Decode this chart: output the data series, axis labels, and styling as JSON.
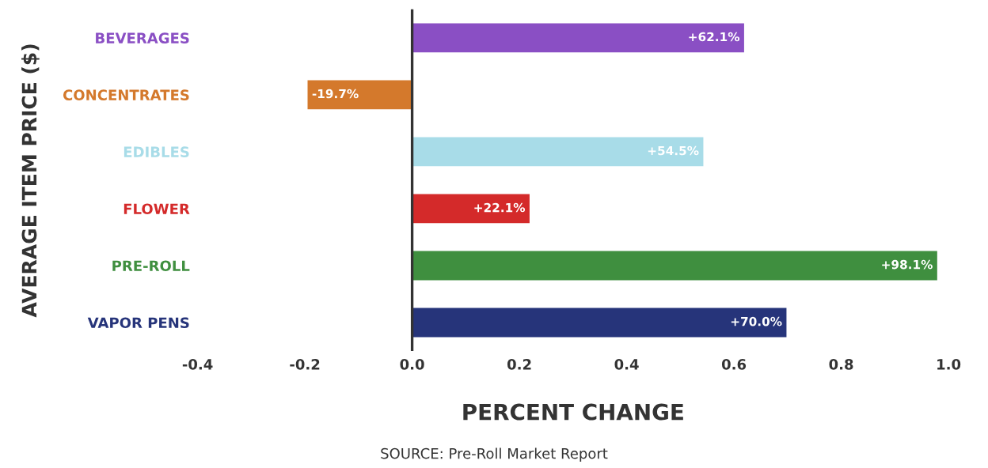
{
  "chart_data": {
    "type": "bar",
    "orientation": "horizontal",
    "categories": [
      "BEVERAGES",
      "CONCENTRATES",
      "EDIBLES",
      "FLOWER",
      "PRE-ROLL",
      "VAPOR PENS"
    ],
    "values": [
      0.621,
      -0.197,
      0.545,
      0.221,
      0.981,
      0.7
    ],
    "value_labels": [
      "+62.1%",
      "-19.7%",
      "+54.5%",
      "+22.1%",
      "+98.1%",
      "+70.0%"
    ],
    "colors": [
      "#8a4fc4",
      "#d4792c",
      "#a8dce8",
      "#d42a2a",
      "#3f8f3f",
      "#26347a"
    ],
    "xlim": [
      -0.4,
      1.0
    ],
    "xticks": [
      {
        "value": -0.4,
        "label": "-0.4"
      },
      {
        "value": -0.2,
        "label": "-0.2"
      },
      {
        "value": 0.0,
        "label": "0.0"
      },
      {
        "value": 0.2,
        "label": "0.2"
      },
      {
        "value": 0.4,
        "label": "0.4"
      },
      {
        "value": 0.6,
        "label": "0.6"
      },
      {
        "value": 0.8,
        "label": "0.8"
      },
      {
        "value": 1.0,
        "label": "1.0"
      }
    ],
    "xlabel": "PERCENT CHANGE",
    "ylabel": "AVERAGE ITEM PRICE ($)",
    "annotations": [
      "SOURCE: Pre-Roll Market Report"
    ],
    "ref_lines": [
      {
        "axis": "x",
        "value": 0,
        "color": "#333333"
      }
    ],
    "grid": false,
    "legend": false
  }
}
